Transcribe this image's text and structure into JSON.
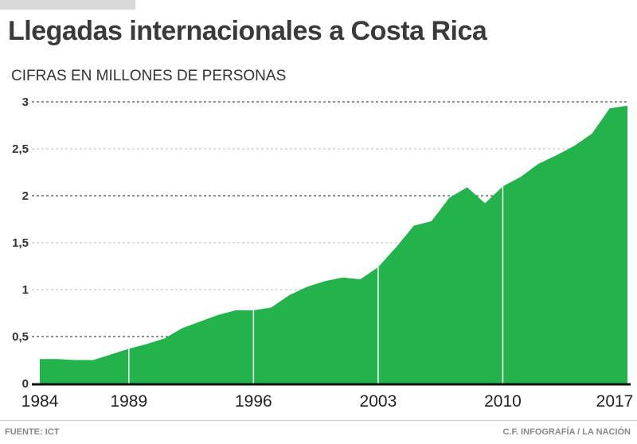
{
  "header": {
    "title": "Llegadas internacionales a Costa Rica",
    "subtitle": "CIFRAS EN MILLONES DE PERSONAS"
  },
  "footer": {
    "source": "FUENTE: ICT",
    "credit": "C.F. INFOGRAFÍA / LA NACIÓN"
  },
  "chart_data": {
    "type": "area",
    "title": "Llegadas internacionales a Costa Rica",
    "ylabel": "Cifras en millones de personas",
    "xlabel": "",
    "color": "#23b24b",
    "x": [
      1984,
      1985,
      1986,
      1987,
      1988,
      1989,
      1990,
      1991,
      1992,
      1993,
      1994,
      1995,
      1996,
      1997,
      1998,
      1999,
      2000,
      2001,
      2002,
      2003,
      2004,
      2005,
      2006,
      2007,
      2008,
      2009,
      2010,
      2011,
      2012,
      2013,
      2014,
      2015,
      2016,
      2017
    ],
    "values": [
      0.26,
      0.26,
      0.25,
      0.25,
      0.31,
      0.37,
      0.42,
      0.48,
      0.59,
      0.66,
      0.73,
      0.78,
      0.78,
      0.81,
      0.94,
      1.03,
      1.09,
      1.13,
      1.11,
      1.24,
      1.45,
      1.68,
      1.73,
      1.98,
      2.09,
      1.92,
      2.1,
      2.2,
      2.34,
      2.43,
      2.53,
      2.66,
      2.93,
      2.96
    ],
    "xlim": [
      1984,
      2017
    ],
    "ylim": [
      0,
      3
    ],
    "x_ticks": [
      1984,
      1989,
      1996,
      2003,
      2010,
      2017
    ],
    "x_tick_labels": [
      "1984",
      "1989",
      "1996",
      "2003",
      "2010",
      "2017"
    ],
    "y_ticks": [
      0,
      0.5,
      1,
      1.5,
      2,
      2.5,
      3
    ],
    "y_tick_labels": [
      "0",
      "0,5",
      "1",
      "1,5",
      "2",
      "2,5",
      "3"
    ],
    "grid": true,
    "legend": "none"
  }
}
